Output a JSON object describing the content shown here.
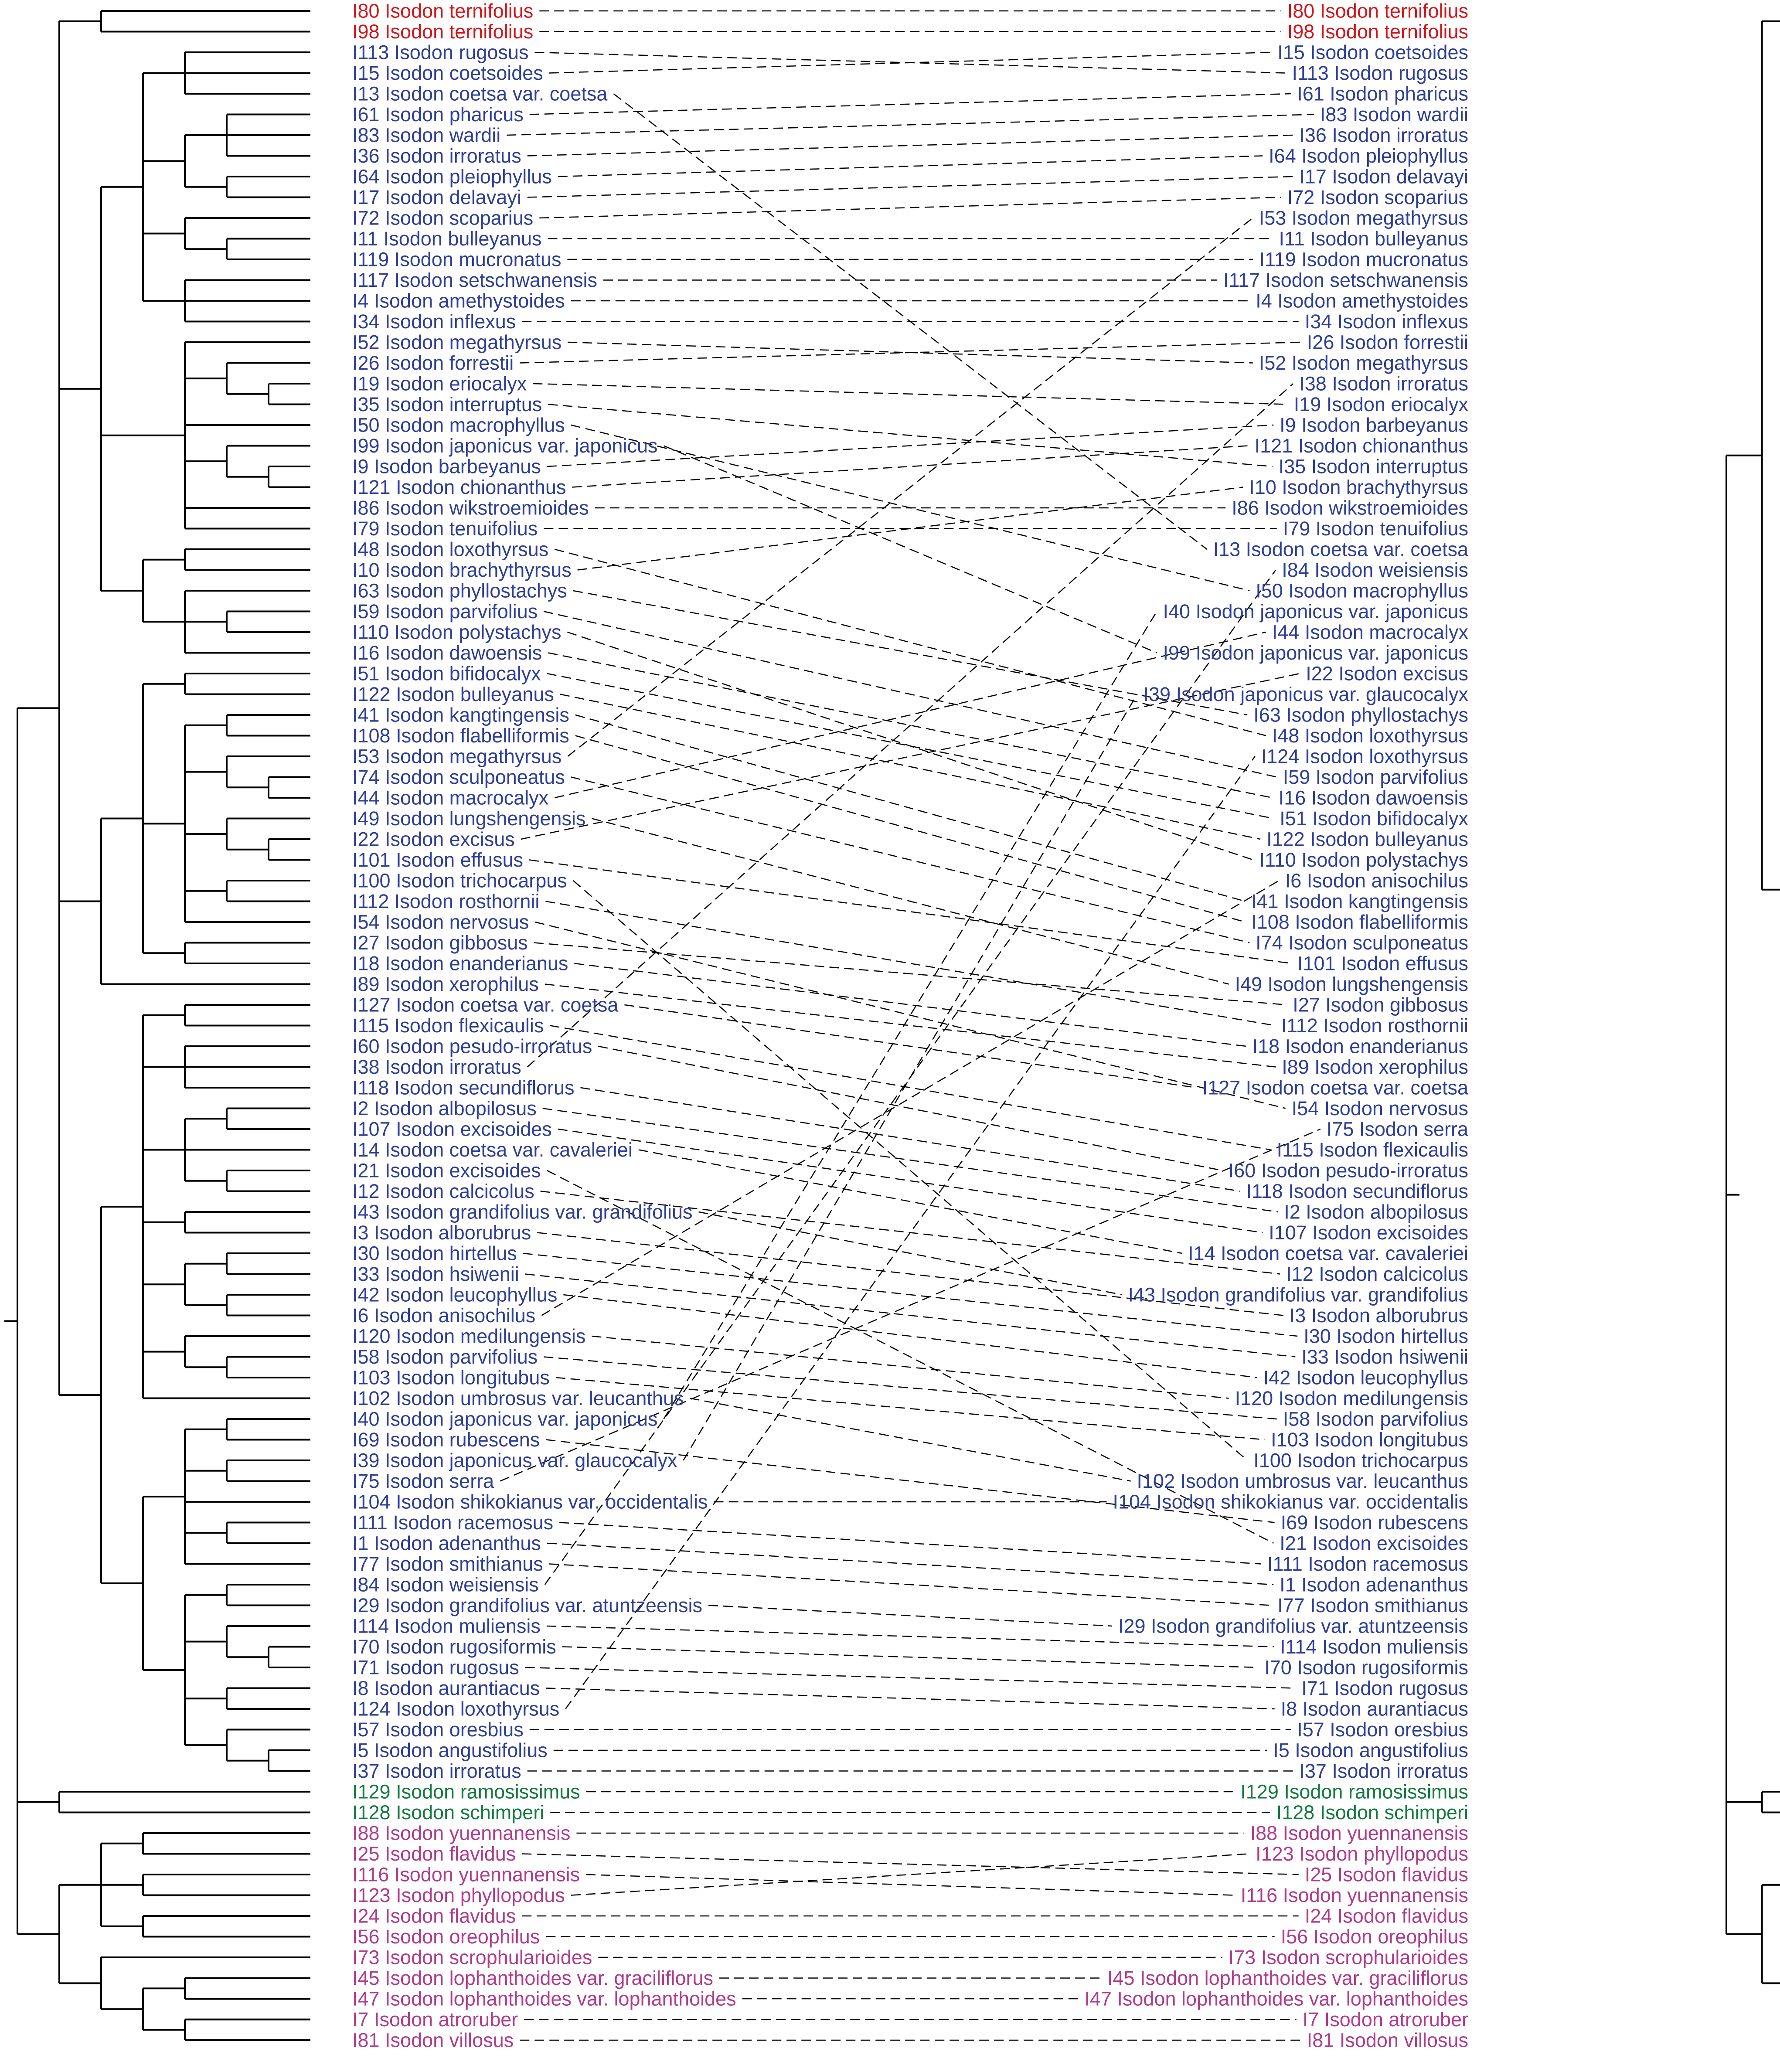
{
  "colors": {
    "red": "#d4141a",
    "blue": "#2e3d96",
    "green": "#127a3e",
    "magenta": "#b03a8c",
    "line": "#000000"
  },
  "left_labels": [
    {
      "text": "I80 Isodon ternifolius",
      "color": "red"
    },
    {
      "text": "I98 Isodon ternifolius",
      "color": "red"
    },
    {
      "text": "I113 Isodon rugosus",
      "color": "blue"
    },
    {
      "text": "I15 Isodon coetsoides",
      "color": "blue"
    },
    {
      "text": "I13 Isodon coetsa var. coetsa",
      "color": "blue"
    },
    {
      "text": "I61 Isodon pharicus",
      "color": "blue"
    },
    {
      "text": "I83 Isodon wardii",
      "color": "blue"
    },
    {
      "text": "I36 Isodon irroratus",
      "color": "blue"
    },
    {
      "text": "I64 Isodon pleiophyllus",
      "color": "blue"
    },
    {
      "text": "I17 Isodon delavayi",
      "color": "blue"
    },
    {
      "text": "I72 Isodon scoparius",
      "color": "blue"
    },
    {
      "text": "I11 Isodon bulleyanus",
      "color": "blue"
    },
    {
      "text": "I119 Isodon mucronatus",
      "color": "blue"
    },
    {
      "text": "I117 Isodon setschwanensis",
      "color": "blue"
    },
    {
      "text": "I4 Isodon amethystoides",
      "color": "blue"
    },
    {
      "text": "I34 Isodon inflexus",
      "color": "blue"
    },
    {
      "text": "I52 Isodon megathyrsus",
      "color": "blue"
    },
    {
      "text": "I26 Isodon forrestii",
      "color": "blue"
    },
    {
      "text": "I19 Isodon eriocalyx",
      "color": "blue"
    },
    {
      "text": "I35 Isodon interruptus",
      "color": "blue"
    },
    {
      "text": "I50 Isodon macrophyllus",
      "color": "blue"
    },
    {
      "text": "I99 Isodon japonicus var. japonicus",
      "color": "blue"
    },
    {
      "text": "I9 Isodon barbeyanus",
      "color": "blue"
    },
    {
      "text": "I121 Isodon chionanthus",
      "color": "blue"
    },
    {
      "text": "I86 Isodon wikstroemioides",
      "color": "blue"
    },
    {
      "text": "I79 Isodon tenuifolius",
      "color": "blue"
    },
    {
      "text": "I48 Isodon loxothyrsus",
      "color": "blue"
    },
    {
      "text": "I10 Isodon brachythyrsus",
      "color": "blue"
    },
    {
      "text": "I63 Isodon phyllostachys",
      "color": "blue"
    },
    {
      "text": "I59 Isodon parvifolius",
      "color": "blue"
    },
    {
      "text": "I110 Isodon polystachys",
      "color": "blue"
    },
    {
      "text": "I16 Isodon dawoensis",
      "color": "blue"
    },
    {
      "text": "I51 Isodon bifidocalyx",
      "color": "blue"
    },
    {
      "text": "I122 Isodon bulleyanus",
      "color": "blue"
    },
    {
      "text": "I41 Isodon kangtingensis",
      "color": "blue"
    },
    {
      "text": "I108 Isodon flabelliformis",
      "color": "blue"
    },
    {
      "text": "I53 Isodon megathyrsus",
      "color": "blue"
    },
    {
      "text": "I74 Isodon sculponeatus",
      "color": "blue"
    },
    {
      "text": "I44 Isodon macrocalyx",
      "color": "blue"
    },
    {
      "text": "I49 Isodon lungshengensis",
      "color": "blue"
    },
    {
      "text": "I22 Isodon excisus",
      "color": "blue"
    },
    {
      "text": "I101 Isodon effusus",
      "color": "blue"
    },
    {
      "text": "I100 Isodon trichocarpus",
      "color": "blue"
    },
    {
      "text": "I112 Isodon rosthornii",
      "color": "blue"
    },
    {
      "text": "I54 Isodon nervosus",
      "color": "blue"
    },
    {
      "text": "I27 Isodon gibbosus",
      "color": "blue"
    },
    {
      "text": "I18 Isodon enanderianus",
      "color": "blue"
    },
    {
      "text": "I89 Isodon xerophilus",
      "color": "blue"
    },
    {
      "text": "I127 Isodon coetsa var. coetsa",
      "color": "blue"
    },
    {
      "text": "I115 Isodon flexicaulis",
      "color": "blue"
    },
    {
      "text": "I60 Isodon pesudo-irroratus",
      "color": "blue"
    },
    {
      "text": "I38 Isodon irroratus",
      "color": "blue"
    },
    {
      "text": "I118 Isodon secundiflorus",
      "color": "blue"
    },
    {
      "text": "I2 Isodon albopilosus",
      "color": "blue"
    },
    {
      "text": "I107 Isodon excisoides",
      "color": "blue"
    },
    {
      "text": "I14 Isodon coetsa var. cavaleriei",
      "color": "blue"
    },
    {
      "text": "I21 Isodon excisoides",
      "color": "blue"
    },
    {
      "text": "I12 Isodon calcicolus",
      "color": "blue"
    },
    {
      "text": "I43 Isodon grandifolius var. grandifolius",
      "color": "blue"
    },
    {
      "text": "I3 Isodon alborubrus",
      "color": "blue"
    },
    {
      "text": "I30 Isodon hirtellus",
      "color": "blue"
    },
    {
      "text": "I33 Isodon hsiwenii",
      "color": "blue"
    },
    {
      "text": "I42 Isodon leucophyllus",
      "color": "blue"
    },
    {
      "text": "I6 Isodon anisochilus",
      "color": "blue"
    },
    {
      "text": "I120 Isodon medilungensis",
      "color": "blue"
    },
    {
      "text": "I58 Isodon parvifolius",
      "color": "blue"
    },
    {
      "text": "I103 Isodon longitubus",
      "color": "blue"
    },
    {
      "text": "I102 Isodon umbrosus var. leucanthus",
      "color": "blue"
    },
    {
      "text": "I40 Isodon japonicus var. japonicus",
      "color": "blue"
    },
    {
      "text": "I69 Isodon rubescens",
      "color": "blue"
    },
    {
      "text": "I39 Isodon japonicus var. glaucocalyx",
      "color": "blue"
    },
    {
      "text": "I75 Isodon serra",
      "color": "blue"
    },
    {
      "text": "I104 Isodon shikokianus var. occidentalis",
      "color": "blue"
    },
    {
      "text": "I111 Isodon racemosus",
      "color": "blue"
    },
    {
      "text": "I1 Isodon adenanthus",
      "color": "blue"
    },
    {
      "text": "I77 Isodon smithianus",
      "color": "blue"
    },
    {
      "text": "I84 Isodon weisiensis",
      "color": "blue"
    },
    {
      "text": "I29 Isodon grandifolius var. atuntzeensis",
      "color": "blue"
    },
    {
      "text": "I114 Isodon muliensis",
      "color": "blue"
    },
    {
      "text": "I70 Isodon rugosiformis",
      "color": "blue"
    },
    {
      "text": "I71 Isodon rugosus",
      "color": "blue"
    },
    {
      "text": "I8 Isodon aurantiacus",
      "color": "blue"
    },
    {
      "text": "I124 Isodon loxothyrsus",
      "color": "blue"
    },
    {
      "text": "I57 Isodon oresbius",
      "color": "blue"
    },
    {
      "text": "I5 Isodon angustifolius",
      "color": "blue"
    },
    {
      "text": "I37 Isodon irroratus",
      "color": "blue"
    },
    {
      "text": "I129 Isodon ramosissimus",
      "color": "green"
    },
    {
      "text": "I128 Isodon schimperi",
      "color": "green"
    },
    {
      "text": "I88 Isodon yuennanensis",
      "color": "magenta"
    },
    {
      "text": "I25 Isodon flavidus",
      "color": "magenta"
    },
    {
      "text": "I116 Isodon yuennanensis",
      "color": "magenta"
    },
    {
      "text": "I123 Isodon phyllopodus",
      "color": "magenta"
    },
    {
      "text": "I24 Isodon flavidus",
      "color": "magenta"
    },
    {
      "text": "I56 Isodon oreophilus",
      "color": "magenta"
    },
    {
      "text": "I73 Isodon scrophularioides",
      "color": "magenta"
    },
    {
      "text": "I45 Isodon lophanthoides var. graciliflorus",
      "color": "magenta"
    },
    {
      "text": "I47 Isodon lophanthoides var. lophanthoides",
      "color": "magenta"
    },
    {
      "text": "I7 Isodon atroruber",
      "color": "magenta"
    },
    {
      "text": "I81 Isodon villosus",
      "color": "magenta"
    }
  ],
  "right_labels": [
    {
      "text": "I80 Isodon ternifolius",
      "color": "red"
    },
    {
      "text": "I98 Isodon ternifolius",
      "color": "red"
    },
    {
      "text": "I15 Isodon coetsoides",
      "color": "blue"
    },
    {
      "text": "I113 Isodon rugosus",
      "color": "blue"
    },
    {
      "text": "I61 Isodon pharicus",
      "color": "blue"
    },
    {
      "text": "I83 Isodon wardii",
      "color": "blue"
    },
    {
      "text": "I36 Isodon irroratus",
      "color": "blue"
    },
    {
      "text": "I64 Isodon pleiophyllus",
      "color": "blue"
    },
    {
      "text": "I17 Isodon delavayi",
      "color": "blue"
    },
    {
      "text": "I72 Isodon scoparius",
      "color": "blue"
    },
    {
      "text": "I53 Isodon megathyrsus",
      "color": "blue"
    },
    {
      "text": "I11 Isodon bulleyanus",
      "color": "blue"
    },
    {
      "text": "I119 Isodon mucronatus",
      "color": "blue"
    },
    {
      "text": "I117 Isodon setschwanensis",
      "color": "blue"
    },
    {
      "text": "I4 Isodon amethystoides",
      "color": "blue"
    },
    {
      "text": "I34 Isodon inflexus",
      "color": "blue"
    },
    {
      "text": "I26 Isodon forrestii",
      "color": "blue"
    },
    {
      "text": "I52 Isodon megathyrsus",
      "color": "blue"
    },
    {
      "text": "I38 Isodon irroratus",
      "color": "blue"
    },
    {
      "text": "I19 Isodon eriocalyx",
      "color": "blue"
    },
    {
      "text": "I9 Isodon barbeyanus",
      "color": "blue"
    },
    {
      "text": "I121 Isodon chionanthus",
      "color": "blue"
    },
    {
      "text": "I35 Isodon interruptus",
      "color": "blue"
    },
    {
      "text": "I10 Isodon brachythyrsus",
      "color": "blue"
    },
    {
      "text": "I86 Isodon wikstroemioides",
      "color": "blue"
    },
    {
      "text": "I79 Isodon tenuifolius",
      "color": "blue"
    },
    {
      "text": "I13 Isodon coetsa var. coetsa",
      "color": "blue"
    },
    {
      "text": "I84 Isodon weisiensis",
      "color": "blue"
    },
    {
      "text": "I50 Isodon macrophyllus",
      "color": "blue"
    },
    {
      "text": "I40 Isodon japonicus var. japonicus",
      "color": "blue"
    },
    {
      "text": "I44 Isodon macrocalyx",
      "color": "blue"
    },
    {
      "text": "I99 Isodon japonicus var. japonicus",
      "color": "blue"
    },
    {
      "text": "I22 Isodon excisus",
      "color": "blue"
    },
    {
      "text": "I39 Isodon japonicus var. glaucocalyx",
      "color": "blue"
    },
    {
      "text": "I63 Isodon phyllostachys",
      "color": "blue"
    },
    {
      "text": "I48 Isodon loxothyrsus",
      "color": "blue"
    },
    {
      "text": "I124 Isodon loxothyrsus",
      "color": "blue"
    },
    {
      "text": "I59 Isodon parvifolius",
      "color": "blue"
    },
    {
      "text": "I16 Isodon dawoensis",
      "color": "blue"
    },
    {
      "text": "I51 Isodon bifidocalyx",
      "color": "blue"
    },
    {
      "text": "I122 Isodon bulleyanus",
      "color": "blue"
    },
    {
      "text": "I110 Isodon polystachys",
      "color": "blue"
    },
    {
      "text": "I6 Isodon anisochilus",
      "color": "blue"
    },
    {
      "text": "I41 Isodon kangtingensis",
      "color": "blue"
    },
    {
      "text": "I108 Isodon flabelliformis",
      "color": "blue"
    },
    {
      "text": "I74 Isodon sculponeatus",
      "color": "blue"
    },
    {
      "text": "I101 Isodon effusus",
      "color": "blue"
    },
    {
      "text": "I49 Isodon lungshengensis",
      "color": "blue"
    },
    {
      "text": "I27 Isodon gibbosus",
      "color": "blue"
    },
    {
      "text": "I112 Isodon rosthornii",
      "color": "blue"
    },
    {
      "text": "I18 Isodon enanderianus",
      "color": "blue"
    },
    {
      "text": "I89 Isodon xerophilus",
      "color": "blue"
    },
    {
      "text": "I127 Isodon coetsa var. coetsa",
      "color": "blue"
    },
    {
      "text": "I54 Isodon nervosus",
      "color": "blue"
    },
    {
      "text": "I75 Isodon serra",
      "color": "blue"
    },
    {
      "text": "I115 Isodon flexicaulis",
      "color": "blue"
    },
    {
      "text": "I60 Isodon pesudo-irroratus",
      "color": "blue"
    },
    {
      "text": "I118 Isodon secundiflorus",
      "color": "blue"
    },
    {
      "text": "I2 Isodon albopilosus",
      "color": "blue"
    },
    {
      "text": "I107 Isodon excisoides",
      "color": "blue"
    },
    {
      "text": "I14 Isodon coetsa var. cavaleriei",
      "color": "blue"
    },
    {
      "text": "I12 Isodon calcicolus",
      "color": "blue"
    },
    {
      "text": "I43 Isodon grandifolius var. grandifolius",
      "color": "blue"
    },
    {
      "text": "I3 Isodon alborubrus",
      "color": "blue"
    },
    {
      "text": "I30 Isodon hirtellus",
      "color": "blue"
    },
    {
      "text": "I33 Isodon hsiwenii",
      "color": "blue"
    },
    {
      "text": "I42 Isodon leucophyllus",
      "color": "blue"
    },
    {
      "text": "I120 Isodon medilungensis",
      "color": "blue"
    },
    {
      "text": "I58 Isodon parvifolius",
      "color": "blue"
    },
    {
      "text": "I103 Isodon longitubus",
      "color": "blue"
    },
    {
      "text": "I100 Isodon trichocarpus",
      "color": "blue"
    },
    {
      "text": "I102 Isodon umbrosus var. leucanthus",
      "color": "blue"
    },
    {
      "text": "I104 Isodon shikokianus var. occidentalis",
      "color": "blue"
    },
    {
      "text": "I69 Isodon rubescens",
      "color": "blue"
    },
    {
      "text": "I21 Isodon excisoides",
      "color": "blue"
    },
    {
      "text": "I111 Isodon racemosus",
      "color": "blue"
    },
    {
      "text": "I1 Isodon adenanthus",
      "color": "blue"
    },
    {
      "text": "I77 Isodon smithianus",
      "color": "blue"
    },
    {
      "text": "I29 Isodon grandifolius var. atuntzeensis",
      "color": "blue"
    },
    {
      "text": "I114 Isodon muliensis",
      "color": "blue"
    },
    {
      "text": "I70 Isodon rugosiformis",
      "color": "blue"
    },
    {
      "text": "I71 Isodon rugosus",
      "color": "blue"
    },
    {
      "text": "I8 Isodon aurantiacus",
      "color": "blue"
    },
    {
      "text": "I57 Isodon oresbius",
      "color": "blue"
    },
    {
      "text": "I5 Isodon angustifolius",
      "color": "blue"
    },
    {
      "text": "I37 Isodon irroratus",
      "color": "blue"
    },
    {
      "text": "I129 Isodon ramosissimus",
      "color": "green"
    },
    {
      "text": "I128 Isodon schimperi",
      "color": "green"
    },
    {
      "text": "I88 Isodon yuennanensis",
      "color": "magenta"
    },
    {
      "text": "I123 Isodon phyllopodus",
      "color": "magenta"
    },
    {
      "text": "I25 Isodon flavidus",
      "color": "magenta"
    },
    {
      "text": "I116 Isodon yuennanensis",
      "color": "magenta"
    },
    {
      "text": "I24 Isodon flavidus",
      "color": "magenta"
    },
    {
      "text": "I56 Isodon oreophilus",
      "color": "magenta"
    },
    {
      "text": "I73 Isodon scrophularioides",
      "color": "magenta"
    },
    {
      "text": "I45 Isodon lophanthoides var. graciliflorus",
      "color": "magenta"
    },
    {
      "text": "I47 Isodon lophanthoides var. lophanthoides",
      "color": "magenta"
    },
    {
      "text": "I7 Isodon atroruber",
      "color": "magenta"
    },
    {
      "text": "I81 Isodon villosus",
      "color": "magenta"
    }
  ]
}
